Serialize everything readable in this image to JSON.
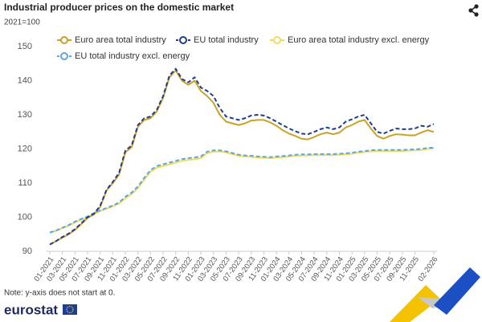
{
  "chart_data": {
    "type": "line",
    "title": "Industrial producer prices on the domestic market",
    "subtitle": "2021=100",
    "note": "Note: y-axis does not start at 0.",
    "logo": "eurostat",
    "categories": [
      "01-2021",
      null,
      "03-2021",
      null,
      "05-2021",
      null,
      "07-2021",
      null,
      "09-2021",
      null,
      "11-2021",
      null,
      "01-2022",
      null,
      "03-2022",
      null,
      "05-2022",
      null,
      "07-2022",
      null,
      "09-2022",
      null,
      "11-2022",
      null,
      "01-2023",
      null,
      "03-2023",
      null,
      "05-2023",
      null,
      "07-2023",
      null,
      "09-2023",
      null,
      "11-2023",
      null,
      "01-2024",
      null,
      "03-2024",
      null,
      "05-2024",
      null,
      "07-2024",
      null,
      "09-2024",
      null,
      "11-2024",
      null,
      "01-2025",
      null,
      "03-2025",
      null,
      "05-2025",
      null,
      "07-2025",
      null,
      "09-2025",
      null,
      "11-2025",
      null,
      null,
      "02-2026"
    ],
    "series": [
      {
        "name": "Euro area total industry",
        "color": "#c9a227",
        "dashed": false,
        "values": [
          92.0,
          93.0,
          94.0,
          95.0,
          96.3,
          98.0,
          99.8,
          100.8,
          103.0,
          107.8,
          110.0,
          112.5,
          119.0,
          120.5,
          126.5,
          128.5,
          129.0,
          131.0,
          135.0,
          141.0,
          143.0,
          140.0,
          138.8,
          140.0,
          137.0,
          135.5,
          133.5,
          130.0,
          128.0,
          127.5,
          127.0,
          127.5,
          128.3,
          128.5,
          128.5,
          127.8,
          126.8,
          125.5,
          124.5,
          123.8,
          123.0,
          122.8,
          123.5,
          124.3,
          124.8,
          124.3,
          124.8,
          126.3,
          127.0,
          128.0,
          128.5,
          126.0,
          123.8,
          123.0,
          123.8,
          124.3,
          124.2,
          124.0,
          124.0,
          124.8,
          125.5,
          125.0
        ]
      },
      {
        "name": "EU total industry",
        "color": "#1f3c8f",
        "dashed": true,
        "values": [
          92.0,
          93.0,
          94.2,
          95.2,
          96.5,
          98.2,
          100.0,
          101.0,
          103.3,
          108.0,
          110.3,
          113.0,
          119.5,
          121.0,
          127.0,
          129.0,
          129.5,
          131.5,
          135.5,
          141.5,
          143.5,
          140.5,
          139.5,
          141.0,
          138.0,
          137.0,
          135.5,
          132.0,
          129.5,
          129.0,
          128.5,
          129.0,
          129.8,
          130.0,
          129.8,
          129.0,
          128.0,
          127.0,
          126.0,
          125.2,
          124.5,
          124.3,
          125.0,
          125.8,
          126.3,
          125.8,
          126.3,
          128.0,
          128.7,
          129.5,
          130.0,
          127.5,
          125.0,
          124.5,
          125.3,
          126.0,
          125.8,
          125.8,
          126.0,
          126.8,
          126.5,
          127.3
        ]
      },
      {
        "name": "Euro area total industry excl. energy",
        "color": "#f0dc5a",
        "dashed": false,
        "values": [
          95.5,
          96.0,
          96.8,
          97.5,
          98.5,
          99.3,
          100.0,
          101.0,
          101.8,
          102.5,
          103.2,
          104.0,
          105.5,
          106.8,
          108.5,
          111.0,
          113.3,
          114.5,
          115.0,
          115.5,
          116.0,
          116.5,
          116.8,
          117.0,
          117.3,
          118.8,
          119.2,
          119.3,
          119.0,
          118.5,
          118.0,
          117.8,
          117.7,
          117.5,
          117.4,
          117.3,
          117.5,
          117.6,
          117.8,
          118.0,
          118.1,
          118.1,
          118.2,
          118.2,
          118.2,
          118.2,
          118.3,
          118.4,
          118.6,
          118.9,
          119.1,
          119.3,
          119.4,
          119.4,
          119.4,
          119.4,
          119.4,
          119.5,
          119.6,
          119.7,
          120.0,
          120.1
        ]
      },
      {
        "name": "EU total industry excl. energy",
        "color": "#5ea6e3",
        "dashed": true,
        "values": [
          95.5,
          96.1,
          96.9,
          97.7,
          98.7,
          99.5,
          100.2,
          101.2,
          102.0,
          102.7,
          103.4,
          104.3,
          106.0,
          107.2,
          109.0,
          111.5,
          113.8,
          115.0,
          115.5,
          116.0,
          116.5,
          117.0,
          117.3,
          117.5,
          117.8,
          119.2,
          119.6,
          119.6,
          119.3,
          118.8,
          118.3,
          118.1,
          118.0,
          117.8,
          117.7,
          117.6,
          117.8,
          117.9,
          118.1,
          118.3,
          118.4,
          118.4,
          118.5,
          118.5,
          118.5,
          118.5,
          118.6,
          118.7,
          118.9,
          119.2,
          119.4,
          119.6,
          119.7,
          119.7,
          119.7,
          119.7,
          119.7,
          119.8,
          119.9,
          120.0,
          120.3,
          120.4
        ]
      }
    ],
    "ylim": [
      90,
      150
    ],
    "yticks": [
      90,
      100,
      110,
      120,
      130,
      140,
      150
    ],
    "grid": false,
    "legend": "top"
  }
}
